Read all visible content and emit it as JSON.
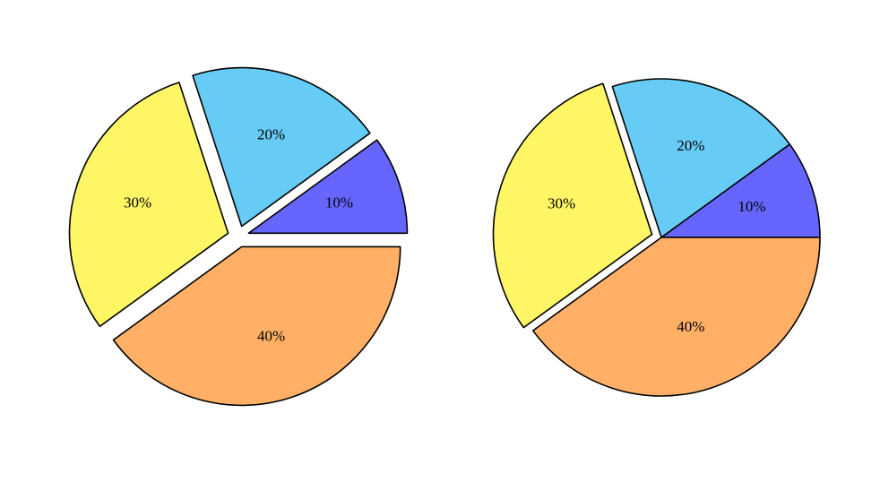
{
  "chart_data": [
    {
      "type": "pie",
      "categories": [
        null,
        null,
        null,
        null
      ],
      "values": [
        10,
        20,
        30,
        40
      ],
      "value_labels": [
        "10%",
        "20%",
        "30%",
        "40%"
      ],
      "colors": [
        "#6666ff",
        "#66ccf5",
        "#fff666",
        "#ffb066"
      ]
    },
    {
      "type": "pie",
      "categories": [
        null,
        null,
        null,
        null
      ],
      "values": [
        10,
        20,
        30,
        40
      ],
      "value_labels": [
        "10%",
        "20%",
        "30%",
        "40%"
      ],
      "colors": [
        "#6666ff",
        "#66ccf5",
        "#fff666",
        "#ffb066"
      ]
    }
  ]
}
